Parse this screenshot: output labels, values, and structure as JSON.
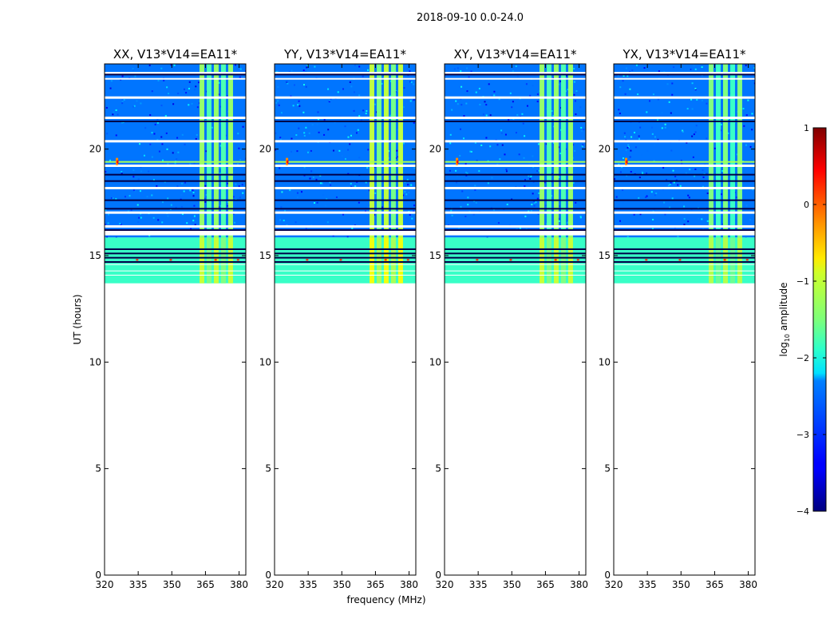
{
  "chart_data": {
    "type": "heatmap",
    "suptitle": "2018-09-10 0.0-24.0",
    "xlabel": "frequency (MHz)",
    "ylabel": "UT (hours)",
    "xlim": [
      320,
      383
    ],
    "ylim": [
      0,
      24
    ],
    "xticks": [
      320,
      335,
      350,
      365,
      380
    ],
    "yticks": [
      0,
      5,
      10,
      15,
      20
    ],
    "panels": [
      {
        "title": "XX, V13*V14=EA11*",
        "rfi_band": [
          362,
          378
        ],
        "rfi_level": -1.4,
        "spike_hour": 19.4
      },
      {
        "title": "YY, V13*V14=EA11*",
        "rfi_band": [
          362,
          378
        ],
        "rfi_level": -1.2,
        "spike_hour": 19.4
      },
      {
        "title": "XY, V13*V14=EA11*",
        "rfi_band": [
          362,
          378
        ],
        "rfi_level": -1.4,
        "spike_hour": 19.4
      },
      {
        "title": "YX, V13*V14=EA11*",
        "rfi_band": [
          362,
          378
        ],
        "rfi_level": -1.5,
        "spike_hour": 19.4
      }
    ],
    "data_hours": [
      13.7,
      24.0
    ],
    "background_level": -2.8,
    "flagged_rows_hours": [
      23.5,
      21.3,
      18.8,
      18.5,
      17.6,
      17.2,
      16.2,
      15.3,
      15.1,
      14.9,
      14.7
    ],
    "colorbar": {
      "label": "log10 amplitude",
      "label_main": "log",
      "label_sub": "10",
      "label_rest": " amplitude",
      "range": [
        -4,
        1
      ],
      "ticks": [
        {
          "value": 1,
          "label": "1"
        },
        {
          "value": 0,
          "label": "0"
        },
        {
          "value": -1,
          "label": "−1"
        },
        {
          "value": -2,
          "label": "−2"
        },
        {
          "value": -3,
          "label": "−3"
        },
        {
          "value": -4,
          "label": "−4"
        }
      ],
      "colormap": "jet"
    }
  }
}
